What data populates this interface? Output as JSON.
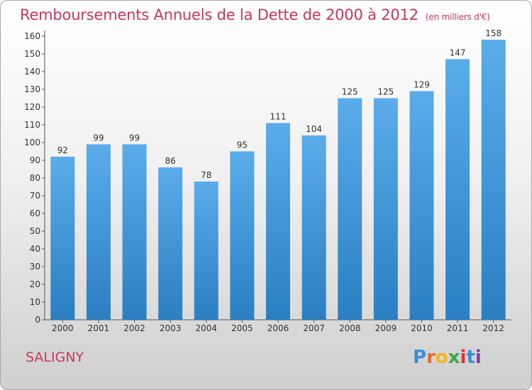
{
  "header": {
    "title": "Remboursements Annuels de la Dette de 2000 à 2012",
    "subtitle": "(en milliers d'€)"
  },
  "footer": {
    "city": "SALIGNY",
    "logo": [
      "P",
      "r",
      "o",
      "x",
      "i",
      "t",
      "i"
    ]
  },
  "colors": {
    "title": "#c8365e",
    "bar_top": "#5aacea",
    "bar_bottom": "#2a7fc2",
    "logo": [
      "#3a8fd8",
      "#e26a2c",
      "#f2b61c",
      "#3aa84a",
      "#e0312f",
      "#3a8fd8",
      "#8a3aa8"
    ]
  },
  "chart_data": {
    "type": "bar",
    "categories": [
      "2000",
      "2001",
      "2002",
      "2003",
      "2004",
      "2005",
      "2006",
      "2007",
      "2008",
      "2009",
      "2010",
      "2011",
      "2012"
    ],
    "values": [
      92,
      99,
      99,
      86,
      78,
      95,
      111,
      104,
      125,
      125,
      129,
      147,
      158
    ],
    "ylim": [
      0,
      160
    ],
    "yticks": [
      0,
      10,
      20,
      30,
      40,
      50,
      60,
      70,
      80,
      90,
      100,
      110,
      120,
      130,
      140,
      150,
      160
    ],
    "grid": false,
    "data_labels": true
  }
}
